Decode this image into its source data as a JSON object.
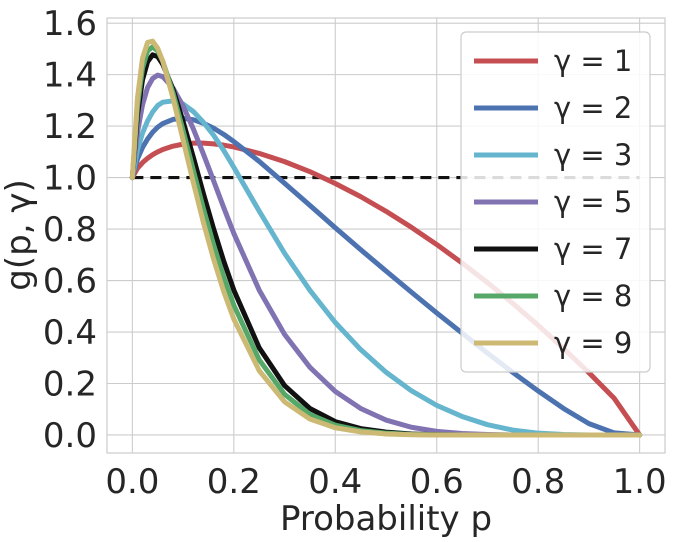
{
  "chart_data": {
    "type": "line",
    "title": "",
    "xlabel": "Probability p",
    "ylabel": "g(p, γ)",
    "xlim": [
      -0.05,
      1.05
    ],
    "ylim": [
      -0.07,
      1.62
    ],
    "x_ticks": [
      0.0,
      0.2,
      0.4,
      0.6,
      0.8,
      1.0
    ],
    "x_tick_labels": [
      "0.0",
      "0.2",
      "0.4",
      "0.6",
      "0.8",
      "1.0"
    ],
    "y_ticks": [
      0.0,
      0.2,
      0.4,
      0.6,
      0.8,
      1.0,
      1.2,
      1.4,
      1.6
    ],
    "y_tick_labels": [
      "0.0",
      "0.2",
      "0.4",
      "0.6",
      "0.8",
      "1.0",
      "1.2",
      "1.4",
      "1.6"
    ],
    "grid": true,
    "legend_position": "top-right",
    "reference_line": {
      "y": 1.0,
      "style": "dashed",
      "color": "#111111"
    },
    "x": [
      0.0,
      0.01,
      0.02,
      0.03,
      0.04,
      0.05,
      0.06,
      0.08,
      0.1,
      0.12,
      0.14,
      0.16,
      0.18,
      0.2,
      0.25,
      0.3,
      0.35,
      0.4,
      0.45,
      0.5,
      0.55,
      0.6,
      0.65,
      0.7,
      0.75,
      0.8,
      0.85,
      0.9,
      0.95,
      1.0
    ],
    "series": [
      {
        "name": "γ = 1",
        "gamma": 1,
        "color": "#c44e52",
        "values": [
          1.0,
          1.036,
          1.058,
          1.075,
          1.089,
          1.1,
          1.109,
          1.122,
          1.13,
          1.134,
          1.134,
          1.131,
          1.126,
          1.119,
          1.094,
          1.062,
          1.023,
          0.977,
          0.926,
          0.869,
          0.807,
          0.74,
          0.668,
          0.592,
          0.511,
          0.426,
          0.336,
          0.242,
          0.142,
          0.0
        ]
      },
      {
        "name": "γ = 2",
        "gamma": 2,
        "color": "#4c72b0",
        "values": [
          1.0,
          1.072,
          1.117,
          1.15,
          1.176,
          1.196,
          1.21,
          1.226,
          1.23,
          1.225,
          1.211,
          1.192,
          1.168,
          1.14,
          1.063,
          0.978,
          0.892,
          0.805,
          0.72,
          0.637,
          0.555,
          0.474,
          0.396,
          0.318,
          0.243,
          0.171,
          0.103,
          0.044,
          0.008,
          0.0
        ]
      },
      {
        "name": "γ = 3",
        "gamma": 3,
        "color": "#64b5cd",
        "values": [
          1.0,
          1.107,
          1.173,
          1.22,
          1.255,
          1.28,
          1.293,
          1.298,
          1.286,
          1.257,
          1.215,
          1.165,
          1.106,
          1.04,
          0.87,
          0.706,
          0.562,
          0.437,
          0.332,
          0.244,
          0.172,
          0.115,
          0.072,
          0.04,
          0.019,
          0.007,
          0.002,
          0.0,
          0.0,
          0.0
        ]
      },
      {
        "name": "γ = 5",
        "gamma": 5,
        "color": "#8172b2",
        "values": [
          1.0,
          1.176,
          1.283,
          1.35,
          1.385,
          1.398,
          1.392,
          1.348,
          1.278,
          1.19,
          1.092,
          0.988,
          0.884,
          0.783,
          0.563,
          0.391,
          0.263,
          0.169,
          0.103,
          0.058,
          0.03,
          0.014,
          0.006,
          0.002,
          0.0,
          0.0,
          0.0,
          0.0,
          0.0,
          0.0
        ]
      },
      {
        "name": "γ = 7",
        "gamma": 7,
        "color": "#111111",
        "values": [
          1.0,
          1.244,
          1.38,
          1.45,
          1.477,
          1.47,
          1.44,
          1.344,
          1.218,
          1.08,
          0.938,
          0.802,
          0.676,
          0.563,
          0.339,
          0.192,
          0.103,
          0.052,
          0.025,
          0.011,
          0.004,
          0.001,
          0.0,
          0.0,
          0.0,
          0.0,
          0.0,
          0.0,
          0.0,
          0.0
        ]
      },
      {
        "name": "γ = 8",
        "gamma": 8,
        "color": "#55a868",
        "values": [
          1.0,
          1.277,
          1.425,
          1.492,
          1.508,
          1.492,
          1.452,
          1.33,
          1.183,
          1.03,
          0.88,
          0.74,
          0.614,
          0.504,
          0.292,
          0.158,
          0.08,
          0.038,
          0.017,
          0.007,
          0.002,
          0.001,
          0.0,
          0.0,
          0.0,
          0.0,
          0.0,
          0.0,
          0.0,
          0.0
        ]
      },
      {
        "name": "γ = 9",
        "gamma": 9,
        "color": "#ccb974",
        "values": [
          1.0,
          1.308,
          1.464,
          1.525,
          1.53,
          1.502,
          1.452,
          1.31,
          1.146,
          0.982,
          0.826,
          0.684,
          0.558,
          0.45,
          0.25,
          0.129,
          0.062,
          0.028,
          0.012,
          0.004,
          0.001,
          0.0,
          0.0,
          0.0,
          0.0,
          0.0,
          0.0,
          0.0,
          0.0,
          0.0
        ]
      }
    ]
  }
}
